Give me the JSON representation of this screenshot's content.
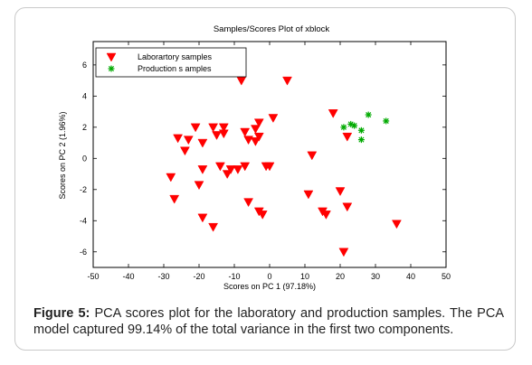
{
  "chart_data": {
    "type": "scatter",
    "title": "Samples/Scores Plot of xblock",
    "xlabel": "Scores on PC 1 (97.18%)",
    "ylabel": "Scores on PC 2 (1.96%)",
    "xlim": [
      -50,
      50
    ],
    "ylim": [
      -7,
      7.5
    ],
    "xticks": [
      -50,
      -40,
      -30,
      -20,
      -10,
      0,
      10,
      20,
      30,
      40,
      50
    ],
    "yticks": [
      -6,
      -4,
      -2,
      0,
      2,
      4,
      6
    ],
    "grid": false,
    "legend_position": "top-left",
    "series": [
      {
        "name": "Laborartory samples",
        "marker": "triangle-down",
        "color": "#ff0000",
        "x": [
          -8,
          5,
          -26,
          -24,
          -21,
          -23,
          -16,
          -15,
          -13,
          -13,
          -19,
          -3,
          -4,
          1,
          -7,
          -6,
          -3,
          -4,
          12,
          18,
          22,
          -28,
          -11,
          -12,
          -14,
          -9,
          -19,
          -20,
          -7,
          0,
          -1,
          -27,
          11,
          20,
          -6,
          -19,
          -3,
          -2,
          -16,
          15,
          16,
          22,
          36,
          21
        ],
        "y": [
          5,
          5,
          1.3,
          0.5,
          2,
          1.2,
          2,
          1.5,
          2,
          1.6,
          1.0,
          2.3,
          1.9,
          2.6,
          1.7,
          1.2,
          1.4,
          1.1,
          0.2,
          2.9,
          1.4,
          -1.2,
          -0.7,
          -1.0,
          -0.5,
          -0.7,
          -0.7,
          -1.7,
          -0.5,
          -0.5,
          -0.5,
          -2.6,
          -2.3,
          -2.1,
          -2.8,
          -3.8,
          -3.4,
          -3.6,
          -4.4,
          -3.4,
          -3.6,
          -3.1,
          -4.2,
          -6
        ]
      },
      {
        "name": "Production s amples",
        "marker": "star",
        "color": "#00aa00",
        "x": [
          21,
          23,
          24,
          26,
          26,
          28,
          33
        ],
        "y": [
          2.0,
          2.2,
          2.1,
          1.8,
          1.2,
          2.8,
          2.4
        ]
      }
    ]
  },
  "caption": {
    "label": "Figure 5:",
    "text": " PCA scores plot for the laboratory and production samples. The PCA model captured 99.14% of the total variance in the first two components."
  }
}
